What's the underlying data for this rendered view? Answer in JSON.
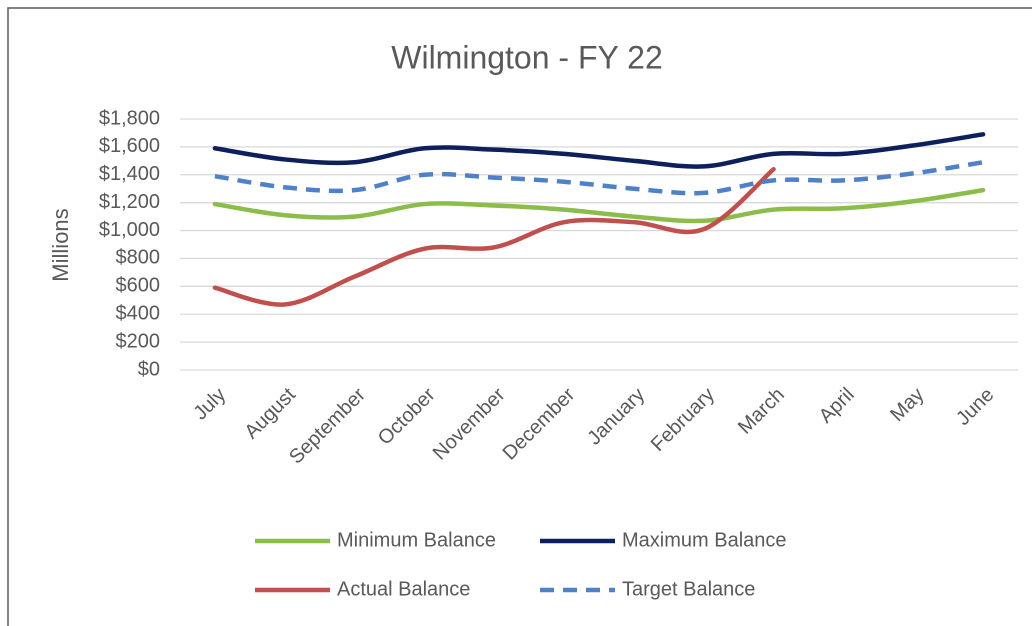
{
  "chart_data": {
    "type": "line",
    "title": "Wilmington - FY 22",
    "y_label": "Millions",
    "categories": [
      "July",
      "August",
      "September",
      "October",
      "November",
      "December",
      "January",
      "February",
      "March",
      "April",
      "May",
      "June"
    ],
    "series": [
      {
        "name": "Minimum Balance",
        "color": "#8cbd4a",
        "dash": false,
        "values": [
          1190,
          1110,
          1100,
          1190,
          1180,
          1150,
          1100,
          1070,
          1150,
          1160,
          1210,
          1290
        ]
      },
      {
        "name": "Maximum Balance",
        "color": "#0d1f5c",
        "dash": false,
        "values": [
          1590,
          1510,
          1490,
          1590,
          1580,
          1550,
          1500,
          1460,
          1550,
          1550,
          1610,
          1690
        ]
      },
      {
        "name": "Actual Balance",
        "color": "#c0504d",
        "dash": false,
        "values": [
          590,
          470,
          670,
          870,
          880,
          1060,
          1060,
          1010,
          1440,
          null,
          null,
          null
        ]
      },
      {
        "name": "Target Balance",
        "color": "#4f81c8",
        "dash": true,
        "values": [
          1390,
          1310,
          1290,
          1400,
          1380,
          1350,
          1300,
          1270,
          1360,
          1360,
          1410,
          1490
        ]
      }
    ],
    "ylim": [
      0,
      1800
    ],
    "yticks": [
      {
        "value": 0,
        "label": "$0"
      },
      {
        "value": 200,
        "label": "$200"
      },
      {
        "value": 400,
        "label": "$400"
      },
      {
        "value": 600,
        "label": "$600"
      },
      {
        "value": 800,
        "label": "$800"
      },
      {
        "value": 1000,
        "label": "$1,000"
      },
      {
        "value": 1200,
        "label": "$1,200"
      },
      {
        "value": 1400,
        "label": "$1,400"
      },
      {
        "value": 1600,
        "label": "$1,600"
      },
      {
        "value": 1800,
        "label": "$1,800"
      }
    ],
    "grid": true,
    "legend": "bottom"
  }
}
